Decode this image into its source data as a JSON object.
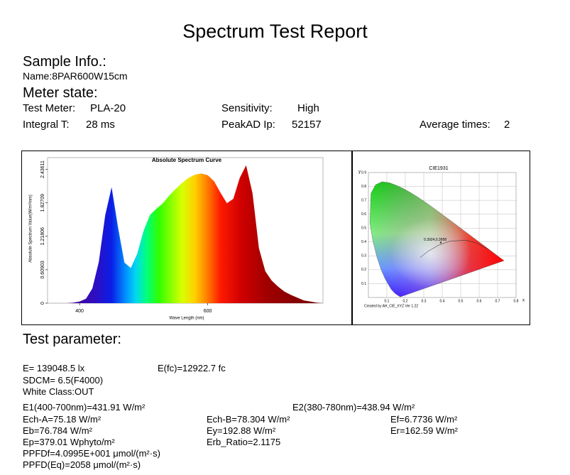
{
  "header": {
    "title": "Spectrum Test Report"
  },
  "sample_info": {
    "heading": "Sample Info.:",
    "name": "Name:8PAR600W15cm"
  },
  "meter_state": {
    "heading": "Meter state:",
    "test_meter_label": "Test Meter:",
    "test_meter": "PLA-20",
    "sensitivity_label": "Sensitivity:",
    "sensitivity": "High",
    "integral_label": "Integral T:",
    "integral": "28 ms",
    "peakad_label": "PeakAD Ip:",
    "peakad": "52157",
    "average_label": "Average times:",
    "average": "2"
  },
  "chart_data": [
    {
      "type": "area",
      "title": "Absolute Spectrum Curve",
      "x_label": "Wave Length (nm)",
      "y_label": "Absolute Spectrum Value(W/m²/nm)",
      "x": [
        380,
        390,
        400,
        410,
        420,
        430,
        440,
        450,
        460,
        470,
        480,
        490,
        500,
        510,
        520,
        530,
        540,
        550,
        560,
        570,
        580,
        590,
        600,
        610,
        620,
        630,
        640,
        650,
        660,
        670,
        680,
        690,
        700,
        710,
        720,
        730,
        740,
        750,
        760,
        770,
        780
      ],
      "values": [
        0,
        0.01,
        0.03,
        0.08,
        0.27,
        0.75,
        1.6,
        2.11,
        1.38,
        0.74,
        0.64,
        0.9,
        1.32,
        1.61,
        1.72,
        1.82,
        1.96,
        2.08,
        2.19,
        2.28,
        2.34,
        2.36,
        2.33,
        2.22,
        2.01,
        1.82,
        1.9,
        2.28,
        2.51,
        2.0,
        1.0,
        0.58,
        0.41,
        0.3,
        0.21,
        0.15,
        0.1,
        0.05,
        0.03,
        0.01,
        0
      ],
      "xlim": [
        350,
        780
      ],
      "ylim": [
        0,
        2.65
      ],
      "xticks": [
        400,
        600
      ],
      "yticks": [
        0,
        0.60903,
        1.21806,
        1.82709,
        2.43611
      ],
      "grid": false
    },
    {
      "type": "scatter",
      "title": "CIE1931",
      "x_label": "x",
      "y_label": "y",
      "x": [
        0.3924
      ],
      "values": [
        0.3958
      ],
      "point_label": "0.3924,0.3958",
      "color": "#333333",
      "xlim": [
        0,
        0.8
      ],
      "ylim": [
        0,
        0.9
      ],
      "xticks": [
        0.1,
        0.2,
        0.3,
        0.4,
        0.5,
        0.6,
        0.7,
        0.8
      ],
      "yticks": [
        0.1,
        0.2,
        0.3,
        0.4,
        0.5,
        0.6,
        0.7,
        0.8,
        0.9
      ],
      "grid": true,
      "footer": "Created by AH_CIE_XYZ Ver 1.22"
    }
  ],
  "test_parameter": {
    "heading": "Test parameter:",
    "items": [
      "E=  139048.5 lx",
      "E(fc)=12922.7 fc",
      "SDCM= 6.5(F4000)",
      "White Class:OUT",
      "E1(400-700nm)=431.91 W/m²",
      "E2(380-780nm)=438.94 W/m²",
      "Ech-A=75.18 W/m²",
      "Ech-B=78.304 W/m²",
      "Ef=6.7736 W/m²",
      "Eb=76.784 W/m²",
      "Ey=192.88 W/m²",
      "Er=162.59 W/m²",
      "Ep=379.01 Wphyto/m²",
      "Erb_Ratio=2.1175",
      "PPFDf=4.0995E+001 μmol/(m²·s)",
      "PPFD(Eq)=2058 μmol/(m²·s)"
    ]
  }
}
